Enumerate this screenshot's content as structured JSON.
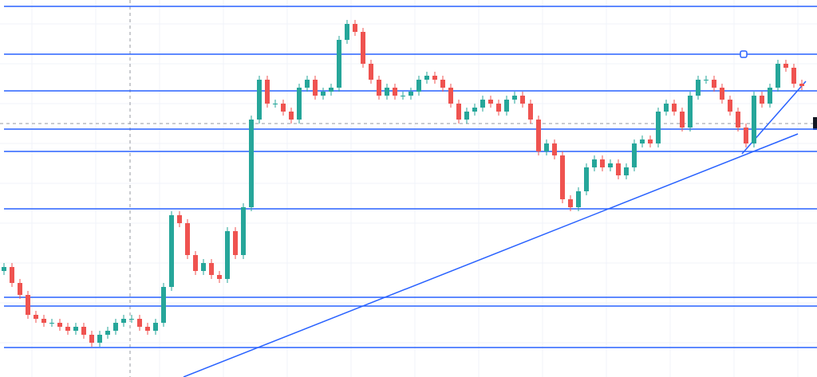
{
  "chart_data": {
    "type": "candlestick",
    "ylim": [
      27,
      500
    ],
    "up_color": "#26a69a",
    "down_color": "#ef5350",
    "line_color": "#2962ff",
    "grid": true,
    "open": [
      160,
      165,
      145,
      130,
      105,
      100,
      95,
      95,
      90,
      85,
      90,
      80,
      70,
      80,
      85,
      95,
      100,
      100,
      90,
      85,
      95,
      140,
      230,
      220,
      180,
      160,
      170,
      155,
      150,
      210,
      180,
      240,
      350,
      400,
      370,
      370,
      360,
      350,
      390,
      400,
      380,
      385,
      390,
      450,
      470,
      460,
      420,
      400,
      380,
      390,
      380,
      380,
      385,
      400,
      405,
      400,
      390,
      370,
      350,
      360,
      365,
      375,
      370,
      360,
      375,
      380,
      370,
      350,
      310,
      320,
      305,
      250,
      240,
      260,
      290,
      300,
      290,
      295,
      280,
      290,
      320,
      325,
      320,
      360,
      370,
      360,
      340,
      380,
      400,
      400,
      390,
      375,
      360,
      340,
      320,
      380,
      370,
      390,
      420,
      415,
      395
    ],
    "high": [
      170,
      170,
      150,
      135,
      110,
      105,
      100,
      100,
      95,
      95,
      95,
      85,
      85,
      90,
      100,
      105,
      105,
      105,
      95,
      100,
      145,
      235,
      235,
      225,
      185,
      175,
      175,
      160,
      215,
      215,
      245,
      355,
      405,
      405,
      375,
      375,
      365,
      395,
      405,
      405,
      390,
      395,
      455,
      475,
      475,
      465,
      425,
      405,
      395,
      395,
      385,
      390,
      405,
      410,
      410,
      405,
      395,
      375,
      365,
      370,
      380,
      380,
      375,
      380,
      385,
      385,
      375,
      355,
      325,
      325,
      310,
      255,
      265,
      295,
      305,
      305,
      300,
      300,
      295,
      325,
      330,
      330,
      365,
      375,
      375,
      365,
      385,
      405,
      405,
      405,
      395,
      380,
      365,
      345,
      385,
      385,
      395,
      425,
      425,
      420,
      400
    ],
    "low": [
      155,
      140,
      125,
      100,
      95,
      90,
      90,
      85,
      80,
      80,
      75,
      65,
      65,
      75,
      80,
      90,
      95,
      85,
      80,
      80,
      90,
      135,
      215,
      175,
      155,
      155,
      150,
      145,
      145,
      175,
      175,
      235,
      345,
      365,
      365,
      355,
      345,
      345,
      385,
      375,
      375,
      380,
      385,
      445,
      455,
      415,
      395,
      375,
      375,
      375,
      375,
      375,
      380,
      395,
      395,
      385,
      365,
      345,
      345,
      355,
      360,
      365,
      355,
      355,
      370,
      365,
      345,
      305,
      305,
      300,
      245,
      235,
      235,
      255,
      285,
      285,
      285,
      275,
      275,
      285,
      315,
      315,
      315,
      355,
      355,
      335,
      335,
      375,
      395,
      385,
      370,
      355,
      335,
      315,
      315,
      365,
      365,
      385,
      410,
      390,
      387
    ],
    "close": [
      165,
      145,
      130,
      105,
      100,
      95,
      95,
      90,
      85,
      90,
      80,
      70,
      80,
      85,
      95,
      100,
      100,
      90,
      85,
      95,
      140,
      230,
      220,
      180,
      160,
      170,
      155,
      150,
      210,
      180,
      240,
      350,
      400,
      370,
      370,
      360,
      350,
      390,
      400,
      380,
      385,
      390,
      450,
      470,
      460,
      420,
      400,
      380,
      390,
      380,
      380,
      385,
      400,
      405,
      400,
      390,
      370,
      350,
      360,
      365,
      375,
      370,
      360,
      375,
      380,
      370,
      350,
      310,
      320,
      305,
      250,
      240,
      260,
      290,
      300,
      290,
      295,
      280,
      290,
      320,
      325,
      320,
      360,
      370,
      360,
      340,
      380,
      400,
      400,
      390,
      375,
      360,
      340,
      320,
      380,
      370,
      390,
      420,
      415,
      395,
      392
    ],
    "levels": [
      492,
      432,
      386,
      338,
      310,
      238,
      127,
      116,
      64
    ],
    "trendlines": [
      {
        "x": [
          22.5,
          99.5
        ],
        "y": [
          27,
          332
        ]
      },
      {
        "x": [
          92.5,
          100.5
        ],
        "y": [
          307,
          398
        ]
      }
    ]
  }
}
